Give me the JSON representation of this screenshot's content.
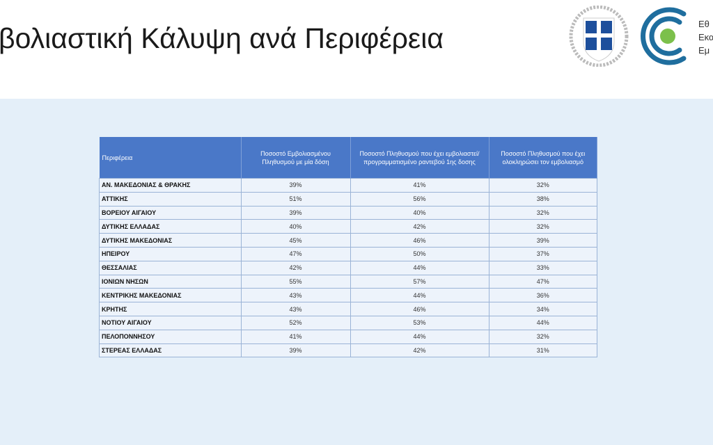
{
  "title": "βολιαστική Κάλυψη ανά Περιφέρεια",
  "logo_text": [
    "Εθ",
    "Εκα",
    "Εμ"
  ],
  "colors": {
    "header": "#4a78c8",
    "background": "#e4eff9",
    "logo_blue": "#1f6e9e",
    "logo_green": "#7cc04b"
  },
  "table": {
    "headers": [
      "Περιφέρεια",
      "Ποσοστό Εμβολιασμένου Πληθυσμού με μία δόση",
      "Ποσοστό Πληθυσμού  που έχει εμβολιαστεί/προγραμματισμένο ραντεβού 1ης δοσης",
      "Ποσοστό Πληθυσμού που έχει ολοκληρώσει τον εμβολιασμό"
    ],
    "rows": [
      [
        "ΑΝ. ΜΑΚΕΔΟΝΙΑΣ & ΘΡΑΚΗΣ",
        "39%",
        "41%",
        "32%"
      ],
      [
        "ΑΤΤΙΚΗΣ",
        "51%",
        "56%",
        "38%"
      ],
      [
        "ΒΟΡΕΙΟΥ ΑΙΓΑΙΟΥ",
        "39%",
        "40%",
        "32%"
      ],
      [
        "ΔΥΤΙΚΗΣ ΕΛΛΑΔΑΣ",
        "40%",
        "42%",
        "32%"
      ],
      [
        "ΔΥΤΙΚΗΣ ΜΑΚΕΔΟΝΙΑΣ",
        "45%",
        "46%",
        "39%"
      ],
      [
        "ΗΠΕΙΡΟΥ",
        "47%",
        "50%",
        "37%"
      ],
      [
        "ΘΕΣΣΑΛΙΑΣ",
        "42%",
        "44%",
        "33%"
      ],
      [
        "ΙΟΝΙΩΝ ΝΗΣΩΝ",
        "55%",
        "57%",
        "47%"
      ],
      [
        "ΚΕΝΤΡΙΚΗΣ ΜΑΚΕΔΟΝΙΑΣ",
        "43%",
        "44%",
        "36%"
      ],
      [
        "ΚΡΗΤΗΣ",
        "43%",
        "46%",
        "34%"
      ],
      [
        "ΝΟΤΙΟΥ ΑΙΓΑΙΟΥ",
        "52%",
        "53%",
        "44%"
      ],
      [
        "ΠΕΛΟΠΟΝΝΗΣΟΥ",
        "41%",
        "44%",
        "32%"
      ],
      [
        "ΣΤΕΡΕΑΣ ΕΛΛΑΔΑΣ",
        "39%",
        "42%",
        "31%"
      ]
    ]
  }
}
